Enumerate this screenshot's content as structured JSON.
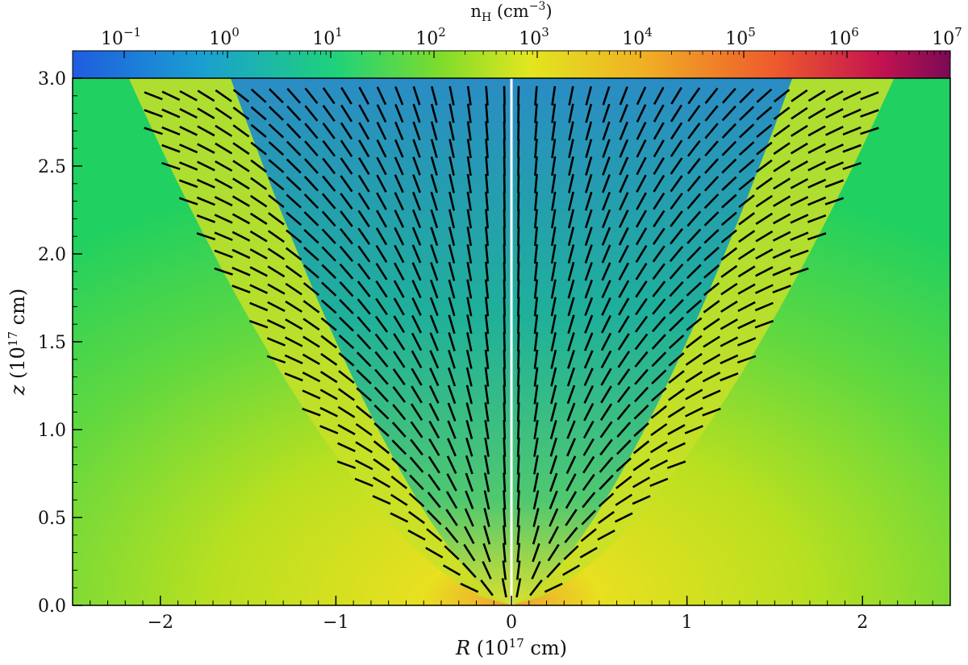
{
  "chart_data": {
    "type": "heatmap",
    "title": "",
    "xlabel": {
      "main": "R",
      "unit_pre": " (10",
      "unit_exp": "17",
      "unit_post": " cm)"
    },
    "ylabel": {
      "main": "z",
      "unit_pre": " (10",
      "unit_exp": "17",
      "unit_post": " cm)"
    },
    "xlim": [
      -2.5,
      2.5
    ],
    "ylim": [
      0.0,
      3.0
    ],
    "x_ticks": [
      {
        "value": -2,
        "label": "−2"
      },
      {
        "value": -1,
        "label": "−1"
      },
      {
        "value": 0,
        "label": "0"
      },
      {
        "value": 1,
        "label": "1"
      },
      {
        "value": 2,
        "label": "2"
      }
    ],
    "y_ticks": [
      {
        "value": 0.0,
        "label": "0.0"
      },
      {
        "value": 0.5,
        "label": "0.5"
      },
      {
        "value": 1.0,
        "label": "1.0"
      },
      {
        "value": 1.5,
        "label": "1.5"
      },
      {
        "value": 2.0,
        "label": "2.0"
      },
      {
        "value": 2.5,
        "label": "2.5"
      },
      {
        "value": 3.0,
        "label": "3.0"
      }
    ],
    "colorbar": {
      "title_main": "n",
      "title_sub": "H",
      "title_unit_pre": " (cm",
      "title_unit_exp": "−3",
      "title_unit_post": ")",
      "scale": "log",
      "log_range": [
        -1.5,
        7
      ],
      "ticks": [
        {
          "exp": -1,
          "label_base": "10",
          "label_exp": "−1"
        },
        {
          "exp": 0,
          "label_base": "10",
          "label_exp": "0"
        },
        {
          "exp": 1,
          "label_base": "10",
          "label_exp": "1"
        },
        {
          "exp": 2,
          "label_base": "10",
          "label_exp": "2"
        },
        {
          "exp": 3,
          "label_base": "10",
          "label_exp": "3"
        },
        {
          "exp": 4,
          "label_base": "10",
          "label_exp": "4"
        },
        {
          "exp": 5,
          "label_base": "10",
          "label_exp": "5"
        },
        {
          "exp": 6,
          "label_base": "10",
          "label_exp": "6"
        },
        {
          "exp": 7,
          "label_base": "10",
          "label_exp": "7"
        }
      ],
      "colormap": [
        "#1f5ce0",
        "#1aa0d0",
        "#1fd27a",
        "#7fdc2a",
        "#e2e620",
        "#f0b024",
        "#ee5a2c",
        "#c41350",
        "#7a0a55"
      ]
    },
    "field_description": "number density map with magnetic field polarization segments; symmetric about R = 0"
  }
}
